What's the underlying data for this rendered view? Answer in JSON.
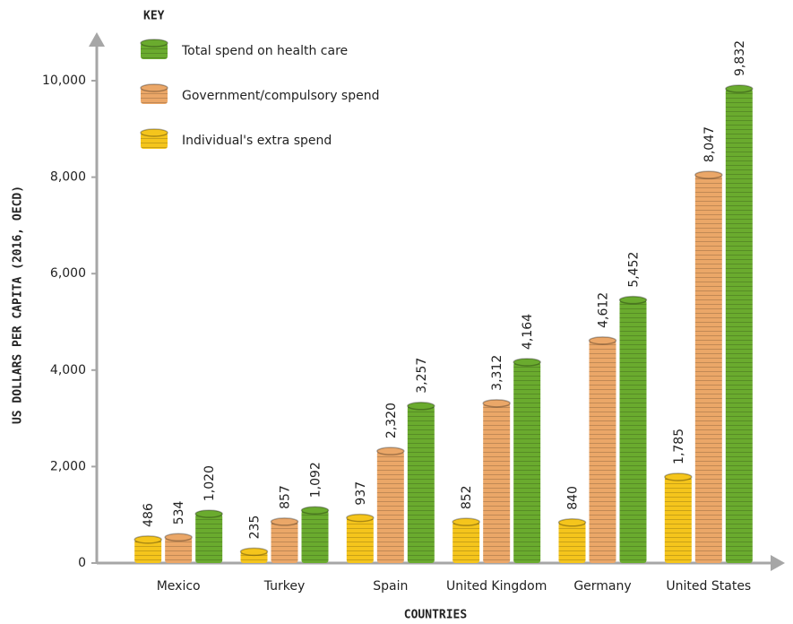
{
  "chart_data": {
    "type": "bar",
    "legend_title": "KEY",
    "x_label": "COUNTRIES",
    "y_label": "US DOLLARS PER CAPITA (2016, OECD)",
    "categories": [
      "Mexico",
      "Turkey",
      "Spain",
      "United Kingdom",
      "Germany",
      "United States"
    ],
    "series": [
      {
        "name": "Individual's extra spend",
        "color": "#f5c51c",
        "values": [
          486,
          235,
          937,
          852,
          840,
          1785
        ],
        "value_labels": [
          "486",
          "235",
          "937",
          "852",
          "840",
          "1,785"
        ]
      },
      {
        "name": "Government/compulsory spend",
        "color": "#eba768",
        "values": [
          534,
          857,
          2320,
          3312,
          4612,
          8047
        ],
        "value_labels": [
          "534",
          "857",
          "2,320",
          "3,312",
          "4,612",
          "8,047"
        ]
      },
      {
        "name": "Total spend on health care",
        "color": "#6aab2e",
        "values": [
          1020,
          1092,
          3257,
          4164,
          5452,
          9832
        ],
        "value_labels": [
          "1,020",
          "1,092",
          "3,257",
          "4,164",
          "5,452",
          "9,832"
        ]
      }
    ],
    "legend_order": [
      2,
      1,
      0
    ],
    "ylim": [
      0,
      10000
    ],
    "yticks": [
      0,
      {
        "value": 2000,
        "label": "2,000"
      },
      {
        "value": 4000,
        "label": "4,000"
      },
      {
        "value": 6000,
        "label": "6,000"
      },
      {
        "value": 8000,
        "label": "8,000"
      },
      {
        "value": 10000,
        "label": "10,000"
      }
    ],
    "axis_color": "#a6a6a6"
  }
}
